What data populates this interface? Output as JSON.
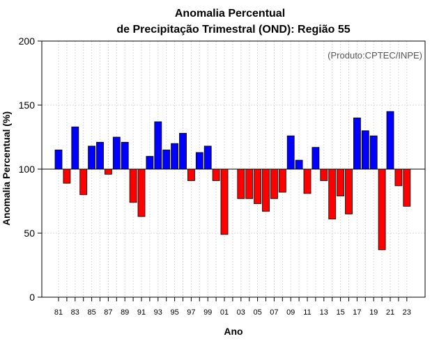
{
  "chart_data": {
    "type": "bar",
    "title": "Anomalia Percentual",
    "subtitle": "de Precipitação Trimestral (OND): Região 55",
    "xlabel": "Ano",
    "ylabel": "Anomalia Percentual (%)",
    "annotation": "(Produto:CPTEC/INPE)",
    "ylim": [
      0,
      200
    ],
    "yticks": [
      0,
      50,
      100,
      150,
      200
    ],
    "baseline": 100,
    "grid": true,
    "colors": {
      "above": "#0000ff",
      "below": "#ff0000",
      "frame": "#000000",
      "grid": "#d8d8d8"
    },
    "categories": [
      "81",
      "82",
      "83",
      "84",
      "85",
      "86",
      "87",
      "88",
      "89",
      "90",
      "91",
      "92",
      "93",
      "94",
      "95",
      "96",
      "97",
      "98",
      "99",
      "00",
      "01",
      "02",
      "03",
      "04",
      "05",
      "06",
      "07",
      "08",
      "09",
      "10",
      "11",
      "12",
      "13",
      "14",
      "15",
      "16",
      "17",
      "18",
      "19",
      "20",
      "21",
      "22",
      "23"
    ],
    "tick_labels": [
      "81",
      "83",
      "85",
      "87",
      "89",
      "91",
      "93",
      "95",
      "97",
      "99",
      "01",
      "03",
      "05",
      "07",
      "09",
      "11",
      "13",
      "15",
      "17",
      "19",
      "21",
      "23"
    ],
    "values": [
      115,
      89,
      133,
      80,
      118,
      121,
      96,
      125,
      121,
      74,
      63,
      110,
      137,
      115,
      120,
      128,
      91,
      113,
      118,
      91,
      49,
      100,
      77,
      77,
      73,
      67,
      77,
      82,
      126,
      107,
      81,
      117,
      91,
      61,
      79,
      65,
      140,
      130,
      126,
      37,
      145,
      87,
      71
    ]
  }
}
